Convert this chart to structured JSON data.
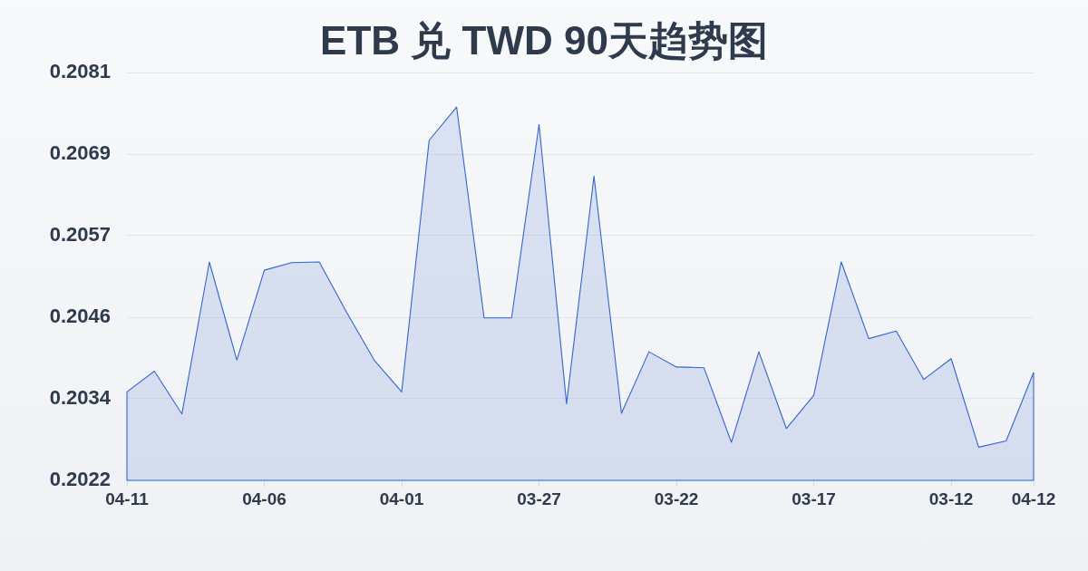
{
  "chart_data": {
    "type": "area",
    "title": "ETB 兑 TWD 90天趋势图",
    "categories": [
      "04-11",
      null,
      null,
      null,
      null,
      "04-06",
      null,
      null,
      null,
      null,
      "04-01",
      null,
      null,
      null,
      null,
      "03-27",
      null,
      null,
      null,
      null,
      "03-22",
      null,
      null,
      null,
      null,
      "03-17",
      null,
      null,
      null,
      null,
      "03-12",
      null,
      null,
      "04-12"
    ],
    "values": [
      0.20348,
      0.20378,
      0.20316,
      0.20536,
      0.20394,
      0.20524,
      0.20535,
      0.20536,
      0.20463,
      0.20394,
      0.20348,
      0.20712,
      0.2076,
      0.20455,
      0.20455,
      0.20735,
      0.20331,
      0.2066,
      0.20317,
      0.20406,
      0.20384,
      0.20383,
      0.20275,
      0.20406,
      0.20295,
      0.20343,
      0.20536,
      0.20425,
      0.20436,
      0.20366,
      0.20396,
      0.20268,
      0.20277,
      0.20376
    ],
    "color": "#3366cc",
    "ylim": [
      0.2022,
      0.2081
    ],
    "yticks": [
      0.2022,
      {
        "value": 0.20338,
        "label": "0.2034"
      },
      {
        "value": 0.20456,
        "label": "0.2046"
      },
      {
        "value": 0.20574,
        "label": "0.2057"
      },
      {
        "value": 0.20692,
        "label": "0.2069"
      },
      0.2081
    ],
    "grid": "y",
    "marker": "none"
  }
}
